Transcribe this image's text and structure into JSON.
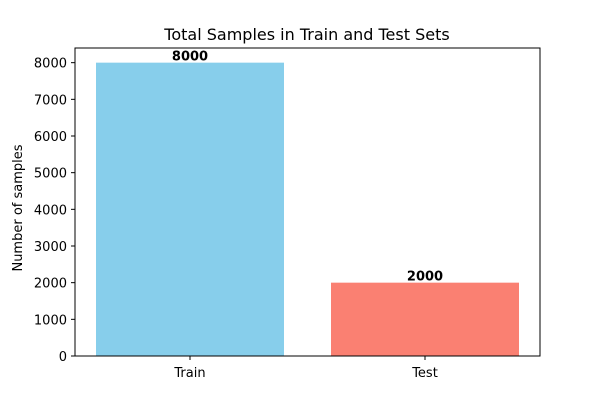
{
  "chart_data": {
    "type": "bar",
    "title": "Total Samples in Train and Test Sets",
    "xlabel": "",
    "ylabel": "Number of samples",
    "categories": [
      "Train",
      "Test"
    ],
    "values": [
      8000,
      2000
    ],
    "data_labels": [
      "8000",
      "2000"
    ],
    "colors": [
      "#87ceeb",
      "#fa8072"
    ],
    "ylim": [
      0,
      8400
    ],
    "yticks": [
      0,
      1000,
      2000,
      3000,
      4000,
      5000,
      6000,
      7000,
      8000
    ],
    "ytick_labels": [
      "0",
      "1000",
      "2000",
      "3000",
      "4000",
      "5000",
      "6000",
      "7000",
      "8000"
    ],
    "grid": false,
    "legend": "none"
  }
}
